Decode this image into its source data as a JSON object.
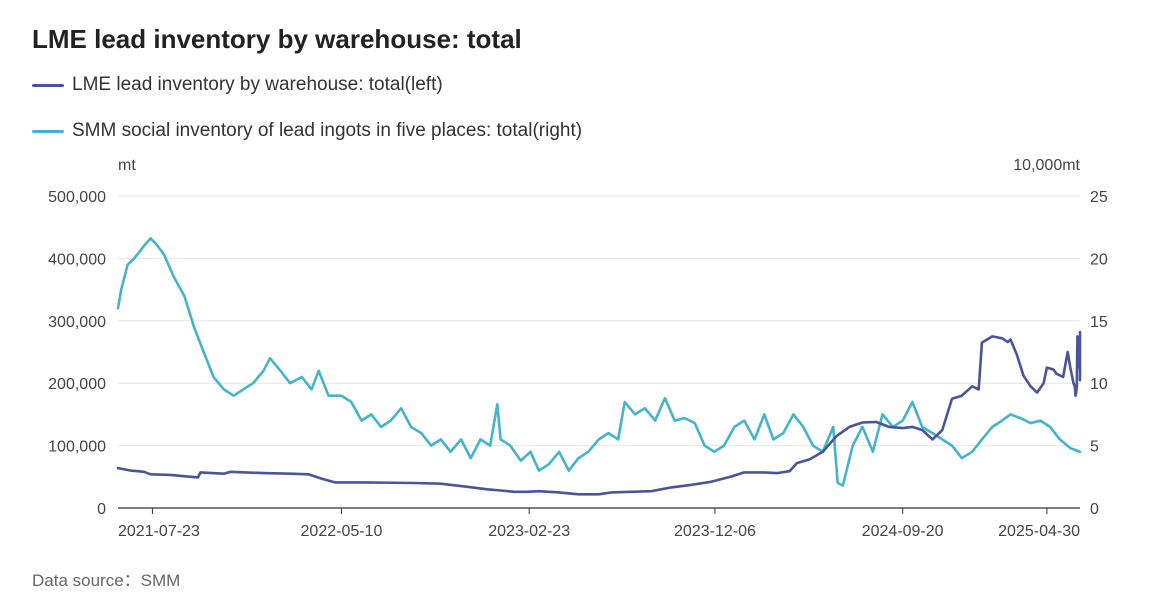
{
  "title": "LME lead inventory by warehouse: total",
  "footer": "Data source：SMM",
  "colors": {
    "left_series": "#4b5499",
    "right_series": "#45b4c9",
    "grid": "#e6e6e6"
  },
  "chart_data": {
    "type": "line",
    "title": "LME lead inventory by warehouse: total",
    "left_axis": {
      "unit": "mt",
      "ylim": [
        0,
        500000
      ],
      "ticks": [
        0,
        100000,
        200000,
        300000,
        400000,
        500000
      ],
      "tick_labels": [
        "0",
        "100,000",
        "200,000",
        "300,000",
        "400,000",
        "500,000"
      ]
    },
    "right_axis": {
      "unit": "10,000mt",
      "ylim": [
        0,
        25
      ],
      "ticks": [
        0,
        5,
        10,
        15,
        20,
        25
      ],
      "tick_labels": [
        "0",
        "5",
        "10",
        "15",
        "20",
        "25"
      ]
    },
    "x_range": [
      "2021-05-31",
      "2025-06-20"
    ],
    "x_tick_labels": [
      "2021-07-23",
      "2022-05-10",
      "2023-02-23",
      "2023-12-06",
      "2024-09-20",
      "2025-04-30"
    ],
    "grid": true,
    "legend_position": "top-left",
    "series": [
      {
        "name": "LME lead inventory by warehouse: total(left)",
        "axis": "left",
        "points": [
          [
            "2021-05-31",
            64000
          ],
          [
            "2021-06-20",
            60000
          ],
          [
            "2021-07-10",
            58000
          ],
          [
            "2021-07-20",
            54000
          ],
          [
            "2021-08-20",
            53000
          ],
          [
            "2021-09-20",
            50000
          ],
          [
            "2021-10-01",
            49000
          ],
          [
            "2021-10-05",
            57000
          ],
          [
            "2021-11-10",
            55000
          ],
          [
            "2021-11-20",
            58000
          ],
          [
            "2022-01-10",
            56000
          ],
          [
            "2022-02-20",
            55000
          ],
          [
            "2022-03-20",
            54000
          ],
          [
            "2022-04-10",
            47000
          ],
          [
            "2022-04-30",
            41000
          ],
          [
            "2022-06-10",
            41000
          ],
          [
            "2022-08-30",
            40000
          ],
          [
            "2022-10-10",
            39000
          ],
          [
            "2022-11-20",
            34000
          ],
          [
            "2022-12-20",
            30000
          ],
          [
            "2023-01-10",
            28000
          ],
          [
            "2023-01-30",
            26000
          ],
          [
            "2023-02-20",
            26000
          ],
          [
            "2023-03-10",
            27000
          ],
          [
            "2023-04-10",
            25000
          ],
          [
            "2023-05-10",
            22000
          ],
          [
            "2023-06-10",
            22000
          ],
          [
            "2023-06-30",
            25000
          ],
          [
            "2023-07-30",
            26000
          ],
          [
            "2023-08-30",
            27000
          ],
          [
            "2023-09-30",
            33000
          ],
          [
            "2023-10-30",
            37000
          ],
          [
            "2023-11-30",
            42000
          ],
          [
            "2023-12-30",
            50000
          ],
          [
            "2024-01-20",
            57000
          ],
          [
            "2024-02-20",
            57000
          ],
          [
            "2024-03-10",
            56000
          ],
          [
            "2024-03-30",
            59000
          ],
          [
            "2024-04-10",
            72000
          ],
          [
            "2024-04-30",
            78000
          ],
          [
            "2024-05-20",
            90000
          ],
          [
            "2024-06-10",
            115000
          ],
          [
            "2024-06-30",
            130000
          ],
          [
            "2024-07-20",
            137000
          ],
          [
            "2024-08-10",
            138000
          ],
          [
            "2024-08-30",
            130000
          ],
          [
            "2024-09-20",
            128000
          ],
          [
            "2024-10-05",
            130000
          ],
          [
            "2024-10-20",
            125000
          ],
          [
            "2024-11-05",
            110000
          ],
          [
            "2024-11-20",
            125000
          ],
          [
            "2024-12-05",
            175000
          ],
          [
            "2024-12-20",
            180000
          ],
          [
            "2025-01-05",
            195000
          ],
          [
            "2025-01-15",
            190000
          ],
          [
            "2025-01-20",
            265000
          ],
          [
            "2025-02-05",
            275000
          ],
          [
            "2025-02-20",
            272000
          ],
          [
            "2025-03-01",
            266000
          ],
          [
            "2025-03-05",
            270000
          ],
          [
            "2025-03-15",
            245000
          ],
          [
            "2025-03-25",
            212000
          ],
          [
            "2025-04-05",
            195000
          ],
          [
            "2025-04-15",
            185000
          ],
          [
            "2025-04-25",
            200000
          ],
          [
            "2025-04-30",
            225000
          ],
          [
            "2025-05-10",
            222000
          ],
          [
            "2025-05-15",
            215000
          ],
          [
            "2025-05-25",
            210000
          ],
          [
            "2025-06-01",
            250000
          ],
          [
            "2025-06-05",
            225000
          ],
          [
            "2025-06-10",
            200000
          ],
          [
            "2025-06-12",
            195000
          ],
          [
            "2025-06-13",
            180000
          ],
          [
            "2025-06-14",
            185000
          ],
          [
            "2025-06-15",
            195000
          ],
          [
            "2025-06-16",
            275000
          ],
          [
            "2025-06-17",
            272000
          ],
          [
            "2025-06-18",
            260000
          ],
          [
            "2025-06-18",
            245000
          ],
          [
            "2025-06-19",
            230000
          ],
          [
            "2025-06-19",
            225000
          ],
          [
            "2025-06-19",
            240000
          ],
          [
            "2025-06-19",
            228000
          ],
          [
            "2025-06-20",
            225000
          ],
          [
            "2025-06-20",
            218000
          ],
          [
            "2025-06-20",
            222000
          ],
          [
            "2025-06-20",
            215000
          ],
          [
            "2025-06-20",
            205000
          ],
          [
            "2025-06-20",
            232000
          ],
          [
            "2025-06-20",
            235000
          ],
          [
            "2025-06-20",
            250000
          ],
          [
            "2025-06-20",
            282000
          ],
          [
            "2025-06-20",
            268000
          ]
        ]
      },
      {
        "name": "SMM social inventory of lead ingots in five places: total(right)",
        "axis": "right",
        "points": [
          [
            "2021-05-31",
            16.0
          ],
          [
            "2021-06-05",
            17.5
          ],
          [
            "2021-06-15",
            19.5
          ],
          [
            "2021-06-25",
            20.0
          ],
          [
            "2021-07-10",
            21.0
          ],
          [
            "2021-07-20",
            21.6
          ],
          [
            "2021-07-28",
            21.2
          ],
          [
            "2021-08-10",
            20.3
          ],
          [
            "2021-08-25",
            18.5
          ],
          [
            "2021-09-10",
            17.0
          ],
          [
            "2021-09-25",
            14.5
          ],
          [
            "2021-10-10",
            12.5
          ],
          [
            "2021-10-25",
            10.5
          ],
          [
            "2021-11-10",
            9.5
          ],
          [
            "2021-11-25",
            9.0
          ],
          [
            "2021-12-10",
            9.5
          ],
          [
            "2021-12-25",
            10.0
          ],
          [
            "2022-01-10",
            11.0
          ],
          [
            "2022-01-20",
            12.0
          ],
          [
            "2022-02-05",
            11.0
          ],
          [
            "2022-02-20",
            10.0
          ],
          [
            "2022-03-10",
            10.5
          ],
          [
            "2022-03-25",
            9.5
          ],
          [
            "2022-04-05",
            11.0
          ],
          [
            "2022-04-20",
            9.0
          ],
          [
            "2022-05-10",
            9.0
          ],
          [
            "2022-05-25",
            8.5
          ],
          [
            "2022-06-10",
            7.0
          ],
          [
            "2022-06-25",
            7.5
          ],
          [
            "2022-07-10",
            6.5
          ],
          [
            "2022-07-25",
            7.0
          ],
          [
            "2022-08-10",
            8.0
          ],
          [
            "2022-08-25",
            6.5
          ],
          [
            "2022-09-10",
            6.0
          ],
          [
            "2022-09-25",
            5.0
          ],
          [
            "2022-10-10",
            5.5
          ],
          [
            "2022-10-25",
            4.5
          ],
          [
            "2022-11-10",
            5.5
          ],
          [
            "2022-11-25",
            4.0
          ],
          [
            "2022-12-10",
            5.5
          ],
          [
            "2022-12-25",
            5.0
          ],
          [
            "2023-01-05",
            8.3
          ],
          [
            "2023-01-10",
            5.5
          ],
          [
            "2023-01-25",
            5.0
          ],
          [
            "2023-02-10",
            3.8
          ],
          [
            "2023-02-25",
            4.5
          ],
          [
            "2023-03-10",
            3.0
          ],
          [
            "2023-03-25",
            3.5
          ],
          [
            "2023-04-10",
            4.5
          ],
          [
            "2023-04-25",
            3.0
          ],
          [
            "2023-05-10",
            4.0
          ],
          [
            "2023-05-25",
            4.5
          ],
          [
            "2023-06-10",
            5.5
          ],
          [
            "2023-06-25",
            6.0
          ],
          [
            "2023-07-10",
            5.5
          ],
          [
            "2023-07-20",
            8.5
          ],
          [
            "2023-08-05",
            7.5
          ],
          [
            "2023-08-20",
            8.0
          ],
          [
            "2023-09-05",
            7.0
          ],
          [
            "2023-09-20",
            8.8
          ],
          [
            "2023-10-05",
            7.0
          ],
          [
            "2023-10-20",
            7.2
          ],
          [
            "2023-11-05",
            6.8
          ],
          [
            "2023-11-20",
            5.0
          ],
          [
            "2023-12-05",
            4.5
          ],
          [
            "2023-12-20",
            5.0
          ],
          [
            "2024-01-05",
            6.5
          ],
          [
            "2024-01-20",
            7.0
          ],
          [
            "2024-02-05",
            5.5
          ],
          [
            "2024-02-20",
            7.5
          ],
          [
            "2024-03-05",
            5.5
          ],
          [
            "2024-03-20",
            6.0
          ],
          [
            "2024-04-05",
            7.5
          ],
          [
            "2024-04-20",
            6.5
          ],
          [
            "2024-05-05",
            5.0
          ],
          [
            "2024-05-20",
            4.5
          ],
          [
            "2024-06-05",
            6.5
          ],
          [
            "2024-06-12",
            2.0
          ],
          [
            "2024-06-20",
            1.8
          ],
          [
            "2024-07-05",
            5.0
          ],
          [
            "2024-07-20",
            6.5
          ],
          [
            "2024-08-05",
            4.5
          ],
          [
            "2024-08-20",
            7.5
          ],
          [
            "2024-09-05",
            6.5
          ],
          [
            "2024-09-20",
            7.0
          ],
          [
            "2024-10-05",
            8.5
          ],
          [
            "2024-10-20",
            6.5
          ],
          [
            "2024-11-05",
            6.0
          ],
          [
            "2024-11-20",
            5.5
          ],
          [
            "2024-12-05",
            5.0
          ],
          [
            "2024-12-20",
            4.0
          ],
          [
            "2025-01-05",
            4.5
          ],
          [
            "2025-01-20",
            5.5
          ],
          [
            "2025-02-05",
            6.5
          ],
          [
            "2025-02-20",
            7.0
          ],
          [
            "2025-03-05",
            7.5
          ],
          [
            "2025-03-20",
            7.2
          ],
          [
            "2025-04-05",
            6.8
          ],
          [
            "2025-04-20",
            7.0
          ],
          [
            "2025-05-05",
            6.5
          ],
          [
            "2025-05-20",
            5.5
          ],
          [
            "2025-06-05",
            4.8
          ],
          [
            "2025-06-20",
            4.5
          ]
        ]
      }
    ]
  }
}
